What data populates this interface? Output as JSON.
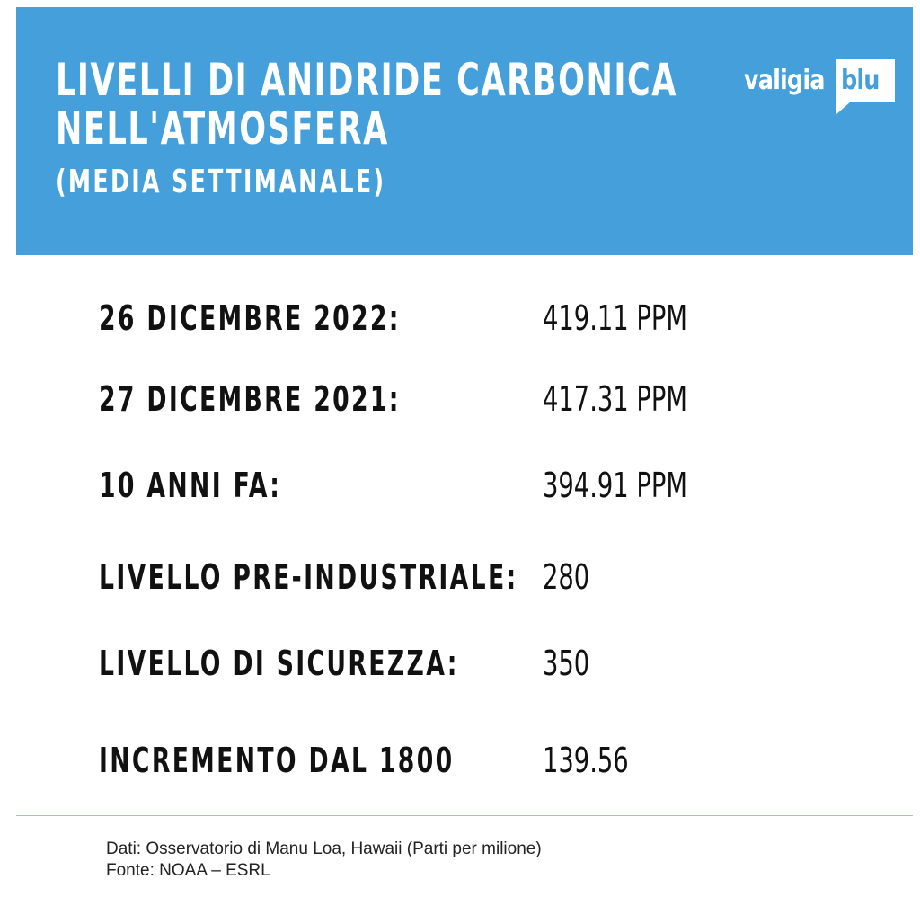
{
  "header": {
    "title_line_1": "LIVELLI DI ANIDRIDE CARBONICA",
    "title_line_2": "NELL'ATMOSFERA",
    "subtitle": "(MEDIA SETTIMANALE)",
    "background_color": "#449fdb"
  },
  "logo": {
    "part_1": "valigia",
    "part_2": "blu"
  },
  "rows": [
    {
      "label": "26 DICEMBRE 2022:",
      "value": "419.11 PPM"
    },
    {
      "label": "27 DICEMBRE 2021:",
      "value": "417.31 PPM"
    },
    {
      "label": "10 ANNI FA:",
      "value": "394.91 PPM"
    },
    {
      "label": "LIVELLO PRE-INDUSTRIALE:",
      "value": "280"
    },
    {
      "label": "LIVELLO DI SICUREZZA:",
      "value": "350"
    },
    {
      "label": "INCREMENTO DAL 1800",
      "value": "139.56"
    }
  ],
  "footer": {
    "data_source": "Dati: Osservatorio di Manu Loa, Hawaii (Parti per milione)",
    "source": "Fonte: NOAA – ESRL"
  }
}
